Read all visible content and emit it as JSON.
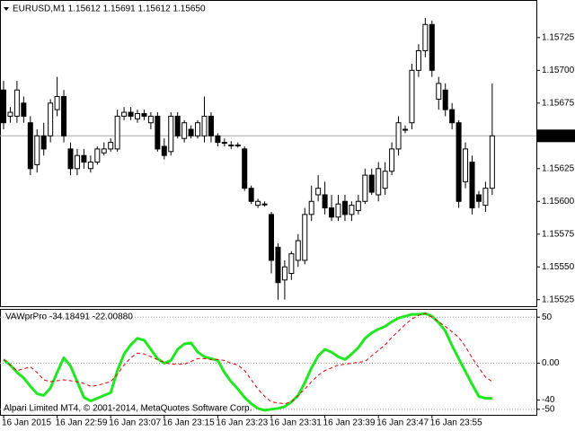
{
  "chart_data": [
    {
      "type": "candlestick",
      "title": "EURUSD,M1  1.15612 1.15691 1.15612 1.15650",
      "categories": [
        "16 Jan 2015",
        null,
        null,
        null,
        null,
        null,
        null,
        null,
        "16 Jan 22:59",
        null,
        null,
        null,
        null,
        null,
        null,
        null,
        "16 Jan 23:07",
        null,
        null,
        null,
        null,
        null,
        null,
        null,
        "16 Jan 23:15",
        null,
        null,
        null,
        null,
        null,
        null,
        null,
        "16 Jan 23:23",
        null,
        null,
        null,
        null,
        null,
        null,
        null,
        "16 Jan 23:31",
        null,
        null,
        null,
        null,
        null,
        null,
        null,
        "16 Jan 23:39",
        null,
        null,
        null,
        null,
        null,
        null,
        null,
        "16 Jan 23:47",
        null,
        null,
        null,
        null,
        null,
        null,
        null,
        "16 Jan 23:55",
        null,
        null,
        null,
        null,
        null,
        null,
        null,
        null,
        null
      ],
      "open": [
        1.15685,
        1.15665,
        1.15665,
        1.15675,
        1.1566,
        1.15628,
        1.1565,
        1.1565,
        1.1567,
        1.1568,
        1.1564,
        1.15625,
        1.15635,
        1.15625,
        1.1563,
        1.15637,
        1.1564,
        1.1564,
        1.15665,
        1.15668,
        1.15663,
        1.15667,
        1.1566,
        1.15665,
        1.15642,
        1.15638,
        1.15665,
        1.15648,
        1.15655,
        1.1565,
        1.1565,
        1.15665,
        1.1565,
        1.15645,
        1.15643,
        1.15643,
        1.1564,
        1.1561,
        1.15597,
        1.15598,
        1.1559,
        1.15565,
        1.1554,
        1.15545,
        1.15555,
        1.15555,
        1.1559,
        1.15605,
        1.15605,
        1.15595,
        1.15588,
        1.156,
        1.1559,
        1.15593,
        1.156,
        1.1562,
        1.15605,
        1.1561,
        1.15623,
        1.1564,
        1.15655,
        1.1566,
        1.157,
        1.15715,
        1.15735,
        1.15678,
        1.15685,
        1.1567,
        1.1566,
        1.15615,
        1.1563,
        1.15605,
        1.15597,
        1.1561
      ],
      "high": [
        1.15692,
        1.15672,
        1.15692,
        1.1568,
        1.15665,
        1.15655,
        1.1566,
        1.15678,
        1.15695,
        1.15685,
        1.15645,
        1.1564,
        1.1564,
        1.15635,
        1.15642,
        1.15645,
        1.15648,
        1.1567,
        1.15672,
        1.15672,
        1.1567,
        1.1567,
        1.15668,
        1.15668,
        1.15648,
        1.15668,
        1.15668,
        1.15662,
        1.15658,
        1.15662,
        1.1568,
        1.15668,
        1.15652,
        1.15648,
        1.15646,
        1.15645,
        1.15642,
        1.15612,
        1.15602,
        1.156,
        1.15592,
        1.15568,
        1.15555,
        1.15562,
        1.15575,
        1.15595,
        1.15612,
        1.1562,
        1.15615,
        1.15605,
        1.15605,
        1.15605,
        1.156,
        1.15605,
        1.15625,
        1.15625,
        1.1563,
        1.1563,
        1.15645,
        1.15665,
        1.15658,
        1.15705,
        1.1572,
        1.1574,
        1.15738,
        1.15695,
        1.1569,
        1.15675,
        1.15662,
        1.15645,
        1.15635,
        1.15608,
        1.15615,
        1.1569
      ],
      "low": [
        1.15655,
        1.1566,
        1.1566,
        1.1566,
        1.1562,
        1.15622,
        1.15635,
        1.15645,
        1.15665,
        1.15645,
        1.1562,
        1.1562,
        1.15625,
        1.15622,
        1.15628,
        1.15635,
        1.15638,
        1.15638,
        1.15662,
        1.15662,
        1.1566,
        1.15662,
        1.15655,
        1.15638,
        1.15632,
        1.15635,
        1.15648,
        1.15645,
        1.15648,
        1.15648,
        1.15645,
        1.15645,
        1.15642,
        1.15642,
        1.1564,
        1.15641,
        1.15608,
        1.15598,
        1.15595,
        1.15596,
        1.15545,
        1.15525,
        1.15525,
        1.1554,
        1.1555,
        1.15552,
        1.15585,
        1.156,
        1.1559,
        1.15585,
        1.15585,
        1.15585,
        1.15585,
        1.1559,
        1.15598,
        1.15605,
        1.156,
        1.15605,
        1.1562,
        1.15635,
        1.15652,
        1.15655,
        1.15695,
        1.1571,
        1.15695,
        1.1567,
        1.15665,
        1.15655,
        1.15595,
        1.1561,
        1.1559,
        1.15595,
        1.15592,
        1.15605
      ],
      "close": [
        1.1566,
        1.15668,
        1.15685,
        1.15665,
        1.15625,
        1.1565,
        1.1564,
        1.15675,
        1.1568,
        1.1565,
        1.15625,
        1.15635,
        1.1563,
        1.1563,
        1.1564,
        1.1564,
        1.15645,
        1.15665,
        1.15668,
        1.15665,
        1.15667,
        1.15665,
        1.15665,
        1.1564,
        1.15635,
        1.15665,
        1.1565,
        1.1566,
        1.1565,
        1.1566,
        1.15665,
        1.1565,
        1.15645,
        1.15645,
        1.15643,
        1.15643,
        1.1561,
        1.156,
        1.156,
        1.15598,
        1.15555,
        1.15538,
        1.1555,
        1.1556,
        1.1557,
        1.1559,
        1.156,
        1.1561,
        1.15595,
        1.15588,
        1.15598,
        1.1559,
        1.15597,
        1.156,
        1.1562,
        1.15607,
        1.15625,
        1.15623,
        1.1564,
        1.1566,
        1.15655,
        1.157,
        1.15715,
        1.15735,
        1.157,
        1.1569,
        1.1567,
        1.1566,
        1.156,
        1.1564,
        1.15595,
        1.156,
        1.1561,
        1.1565
      ],
      "ylim": [
        1.1552,
        1.15753
      ],
      "yticks": [
        1.15725,
        {
          "value": 1.157,
          "label": "1.15700"
        },
        1.15675,
        1.15625,
        {
          "value": 1.156,
          "label": "1.15600"
        },
        1.15575,
        {
          "value": 1.1555,
          "label": "1.15550"
        },
        1.15525
      ],
      "current_price": {
        "value": 1.1565,
        "label": "1.15650"
      },
      "up_color": "#ffffff",
      "down_color": "#000000"
    },
    {
      "type": "line",
      "title": "VAWprPro -34.18491 -22.00880",
      "annotation": "Alpari Limited MT4, © 2001-2014, MetaQuotes Software Corp.",
      "ylim": [
        -56,
        58
      ],
      "yticks": [
        50,
        {
          "value": 0,
          "label": "0.00"
        },
        -40,
        -50
      ],
      "levels": [
        50,
        0,
        -50
      ],
      "series": [
        {
          "color": "#22e622",
          "style": "solid",
          "values": [
            4,
            -2,
            -10,
            -16,
            -25,
            -33,
            -35,
            -27,
            -10,
            6,
            -3,
            -20,
            -37,
            -41,
            -38,
            -35,
            -32,
            -8,
            10,
            20,
            27,
            25,
            15,
            5,
            0,
            3,
            15,
            21,
            22,
            12,
            7,
            5,
            3,
            -10,
            -20,
            -28,
            -37,
            -44,
            -49,
            -51,
            -50,
            -49,
            -47,
            -42,
            -35,
            -21,
            -5,
            8,
            15,
            12,
            7,
            4,
            10,
            17,
            27,
            33,
            37,
            40,
            45,
            49,
            51,
            53,
            53,
            54,
            51,
            44,
            35,
            19,
            5,
            -9,
            -23,
            -36,
            -38,
            -38
          ]
        },
        {
          "color": "#e00000",
          "style": "dashed",
          "values": [
            4,
            -2,
            -8,
            -6,
            -4,
            -10,
            -18,
            -20,
            -19,
            -18,
            -19,
            -20,
            -22,
            -25,
            -24,
            -22,
            -20,
            -12,
            -2,
            6,
            11,
            10,
            7,
            4,
            1,
            -1,
            -1,
            -1,
            2,
            5,
            5,
            4,
            4,
            3,
            0,
            -2,
            -8,
            -18,
            -28,
            -36,
            -42,
            -43,
            -44,
            -42,
            -35,
            -28,
            -20,
            -13,
            -8,
            -5,
            -2,
            -1,
            0,
            1,
            2,
            8,
            14,
            20,
            28,
            35,
            42,
            48,
            52,
            54,
            50,
            45,
            40,
            34,
            28,
            18,
            6,
            -5,
            -15,
            -20
          ]
        }
      ]
    }
  ]
}
